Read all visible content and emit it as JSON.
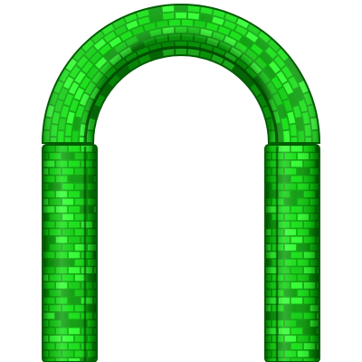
{
  "object": {
    "kind": "brick-arch",
    "parts": [
      "arch-crown",
      "left-pillar",
      "right-pillar"
    ]
  },
  "colors": {
    "background": "#ffffff",
    "brick": "#10e010",
    "brick_light": "#2bff2b",
    "brick_mid": "#0ccc0c",
    "brick_dark": "#089a08",
    "mortar": "#07a007",
    "edge": "#045c04",
    "shadow": "#033a03"
  }
}
